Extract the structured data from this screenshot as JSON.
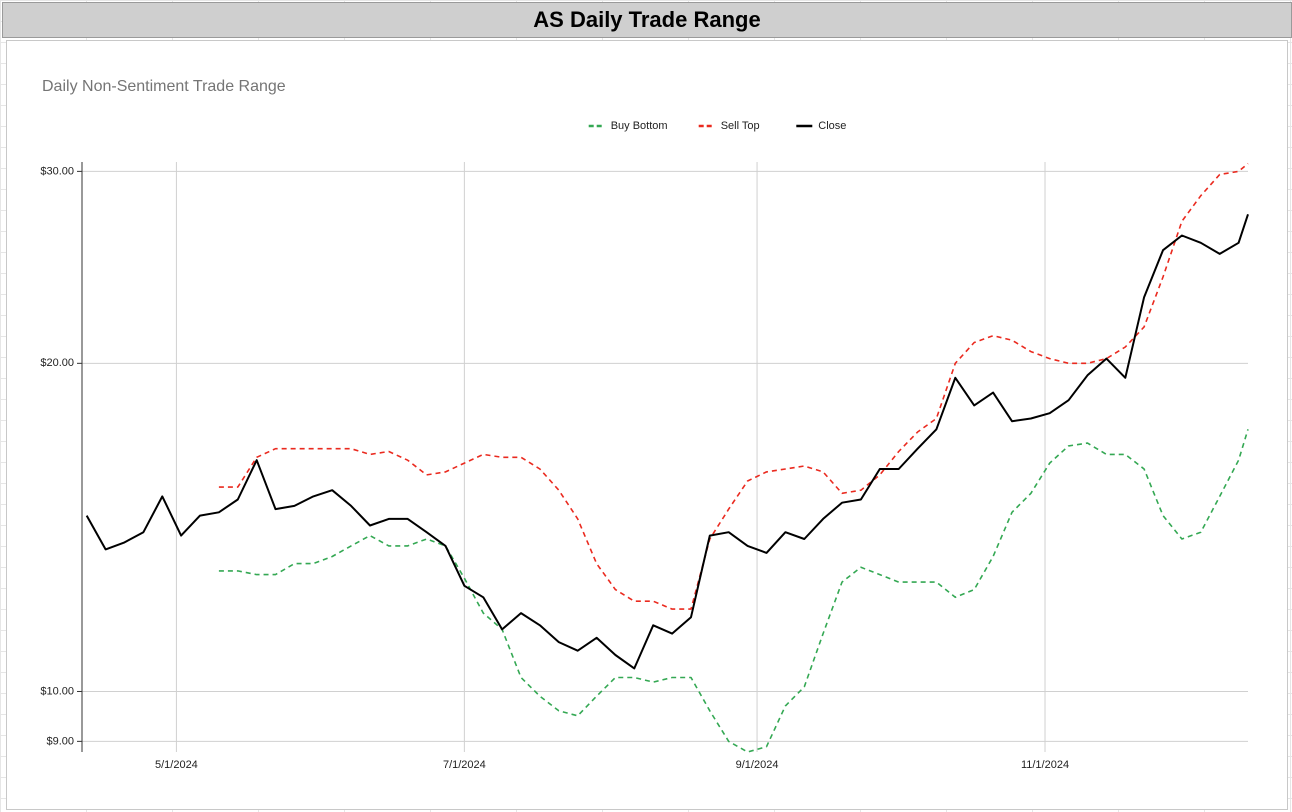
{
  "sheet_title": "AS Daily Trade Range",
  "chart_data": {
    "type": "line",
    "title": "Daily Non-Sentiment Trade Range",
    "x": [
      "4/12/2024",
      "4/16/2024",
      "4/20/2024",
      "4/24/2024",
      "4/28/2024",
      "5/2/2024",
      "5/6/2024",
      "5/10/2024",
      "5/14/2024",
      "5/18/2024",
      "5/22/2024",
      "5/26/2024",
      "5/30/2024",
      "6/3/2024",
      "6/7/2024",
      "6/11/2024",
      "6/15/2024",
      "6/19/2024",
      "6/23/2024",
      "6/27/2024",
      "7/1/2024",
      "7/5/2024",
      "7/9/2024",
      "7/13/2024",
      "7/17/2024",
      "7/21/2024",
      "7/25/2024",
      "7/29/2024",
      "8/2/2024",
      "8/6/2024",
      "8/10/2024",
      "8/14/2024",
      "8/18/2024",
      "8/22/2024",
      "8/26/2024",
      "8/30/2024",
      "9/3/2024",
      "9/7/2024",
      "9/11/2024",
      "9/15/2024",
      "9/19/2024",
      "9/23/2024",
      "9/27/2024",
      "10/1/2024",
      "10/5/2024",
      "10/9/2024",
      "10/13/2024",
      "10/17/2024",
      "10/21/2024",
      "10/25/2024",
      "10/29/2024",
      "11/2/2024",
      "11/6/2024",
      "11/10/2024",
      "11/14/2024",
      "11/18/2024",
      "11/22/2024",
      "11/26/2024",
      "11/30/2024",
      "12/4/2024",
      "12/8/2024",
      "12/12/2024",
      "12/14/2024"
    ],
    "series": [
      {
        "name": "Buy Bottom",
        "color": "#34a853",
        "dashed": true,
        "values": [
          null,
          null,
          null,
          null,
          null,
          null,
          null,
          12.9,
          12.9,
          12.8,
          12.8,
          13.1,
          13.1,
          13.3,
          13.6,
          13.9,
          13.6,
          13.6,
          13.8,
          13.6,
          12.7,
          11.8,
          11.4,
          10.3,
          9.9,
          9.6,
          9.5,
          9.9,
          10.3,
          10.3,
          10.2,
          10.3,
          10.3,
          9.6,
          9.0,
          8.8,
          8.9,
          9.7,
          10.1,
          11.3,
          12.6,
          13.0,
          12.8,
          12.6,
          12.6,
          12.6,
          12.2,
          12.4,
          13.3,
          14.6,
          15.2,
          16.2,
          16.8,
          16.9,
          16.5,
          16.5,
          16.0,
          14.5,
          13.8,
          14.0,
          15.1,
          16.3,
          17.4
        ]
      },
      {
        "name": "Sell Top",
        "color": "#ea2a1f",
        "dashed": true,
        "values": [
          null,
          null,
          null,
          null,
          null,
          null,
          null,
          15.4,
          15.4,
          16.4,
          16.7,
          16.7,
          16.7,
          16.7,
          16.7,
          16.5,
          16.6,
          16.3,
          15.8,
          15.9,
          16.2,
          16.5,
          16.4,
          16.4,
          16.0,
          15.3,
          14.4,
          13.1,
          12.4,
          12.1,
          12.1,
          11.9,
          11.9,
          13.8,
          14.7,
          15.6,
          15.9,
          16.0,
          16.1,
          15.9,
          15.2,
          15.3,
          15.8,
          16.6,
          17.3,
          17.8,
          20.0,
          20.9,
          21.2,
          21.0,
          20.5,
          20.2,
          20.0,
          20.0,
          20.2,
          20.7,
          21.6,
          24.0,
          27.0,
          28.5,
          29.8,
          30.0,
          30.5
        ]
      },
      {
        "name": "Close",
        "color": "#000000",
        "dashed": false,
        "values": [
          14.5,
          13.5,
          13.7,
          14.0,
          15.1,
          13.9,
          14.5,
          14.6,
          15.0,
          16.3,
          14.7,
          14.8,
          15.1,
          15.3,
          14.8,
          14.2,
          14.4,
          14.4,
          14.0,
          13.6,
          12.5,
          12.2,
          11.4,
          11.8,
          11.5,
          11.1,
          10.9,
          11.2,
          10.8,
          10.5,
          11.5,
          11.3,
          11.7,
          13.9,
          14.0,
          13.6,
          13.4,
          14.0,
          13.8,
          14.4,
          14.9,
          15.0,
          16.0,
          16.0,
          16.7,
          17.4,
          19.4,
          18.3,
          18.8,
          17.7,
          17.8,
          18.0,
          18.5,
          19.5,
          20.2,
          19.4,
          23.0,
          25.4,
          26.2,
          25.8,
          25.2,
          25.8,
          27.4
        ]
      }
    ],
    "xlim": [
      "4/11/2024",
      "12/14/2024"
    ],
    "xticks": [
      "5/1/2024",
      "7/1/2024",
      "9/1/2024",
      "11/1/2024"
    ],
    "ylim": [
      8.8,
      30.6
    ],
    "yticks": [
      {
        "value": 9,
        "label": "$9.00"
      },
      {
        "value": 10,
        "label": "$10.00"
      },
      {
        "value": 20,
        "label": "$20.00"
      },
      {
        "value": 30,
        "label": "$30.00"
      }
    ],
    "log_scale_y": true,
    "grid": true,
    "legend": "top"
  }
}
